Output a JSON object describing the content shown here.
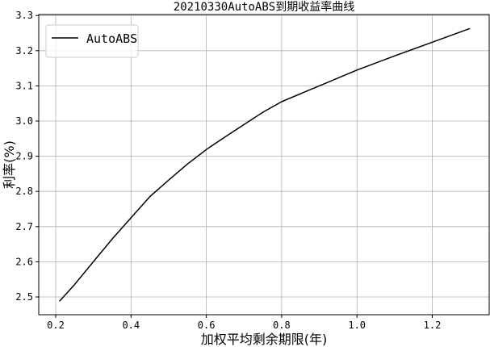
{
  "chart_data": {
    "type": "line",
    "title": "20210330AutoABS到期收益率曲线",
    "xlabel": "加权平均剩余期限(年)",
    "ylabel": "利率(%)",
    "xlim": [
      0.155,
      1.35
    ],
    "ylim": [
      2.45,
      3.3
    ],
    "xticks": [
      0.2,
      0.4,
      0.6,
      0.8,
      1.0,
      1.2
    ],
    "xtick_labels": [
      "0.2",
      "0.4",
      "0.6",
      "0.8",
      "1.0",
      "1.2"
    ],
    "yticks": [
      2.5,
      2.6,
      2.7,
      2.8,
      2.9,
      3.0,
      3.1,
      3.2,
      3.3
    ],
    "ytick_labels": [
      "2.5",
      "2.6",
      "2.7",
      "2.8",
      "2.9",
      "3.0",
      "3.1",
      "3.2",
      "3.3"
    ],
    "grid": true,
    "legend_position": "top-left",
    "series": [
      {
        "name": "AutoABS",
        "color": "#000000",
        "x": [
          0.21,
          0.25,
          0.3,
          0.35,
          0.4,
          0.45,
          0.5,
          0.55,
          0.6,
          0.65,
          0.7,
          0.75,
          0.8,
          0.9,
          1.0,
          1.1,
          1.2,
          1.3
        ],
        "y": [
          2.488,
          2.535,
          2.6,
          2.665,
          2.725,
          2.785,
          2.832,
          2.878,
          2.919,
          2.955,
          2.99,
          3.025,
          3.055,
          3.1,
          3.145,
          3.185,
          3.224,
          3.263
        ]
      }
    ]
  }
}
